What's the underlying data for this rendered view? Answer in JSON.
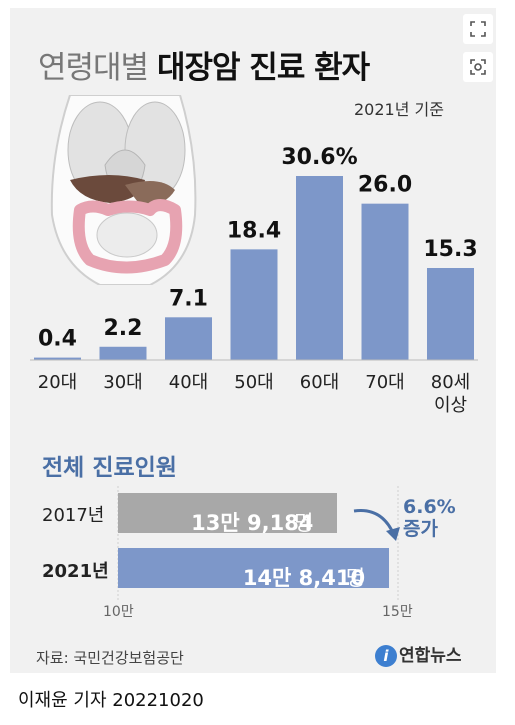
{
  "title_light": "연령대별",
  "title_bold": "대장암 진료 환자",
  "basis": "2021년 기준",
  "section_title": "전체 진료인원",
  "rows": [
    {
      "year": "2017년",
      "value": "13만 9,184",
      "unit": "명"
    },
    {
      "year": "2021년",
      "value": "14만 8,410",
      "unit": "명"
    }
  ],
  "increase_line1": "6.6%",
  "increase_line2": "증가",
  "axis_min_label": "10만",
  "axis_max_label": "15만",
  "source": "자료: 국민건강보험공단",
  "logo_text": "연합뉴스",
  "footer": "이재윤 기자  20221020",
  "colors": {
    "bar": "#7d97c9",
    "bar_gray": "#a8a8a8",
    "accent": "#4a6fa5"
  },
  "icons": [
    "expand-icon",
    "zoom-icon",
    "organs-illustration"
  ],
  "chart_data": [
    {
      "type": "bar",
      "title": "연령대별 대장암 진료 환자",
      "categories": [
        "20대",
        "30대",
        "40대",
        "50대",
        "60대",
        "70대",
        "80세 이상"
      ],
      "values": [
        0.4,
        2.2,
        7.1,
        18.4,
        30.6,
        26.0,
        15.3
      ],
      "data_labels": [
        "0.4",
        "2.2",
        "7.1",
        "18.4",
        "30.6%",
        "26.0",
        "15.3"
      ],
      "ylim": [
        0,
        30.6
      ]
    },
    {
      "type": "bar",
      "orientation": "horizontal",
      "title": "전체 진료인원",
      "categories": [
        "2017년",
        "2021년"
      ],
      "values": [
        139184,
        148410
      ],
      "xlim": [
        100000,
        150000
      ]
    }
  ]
}
